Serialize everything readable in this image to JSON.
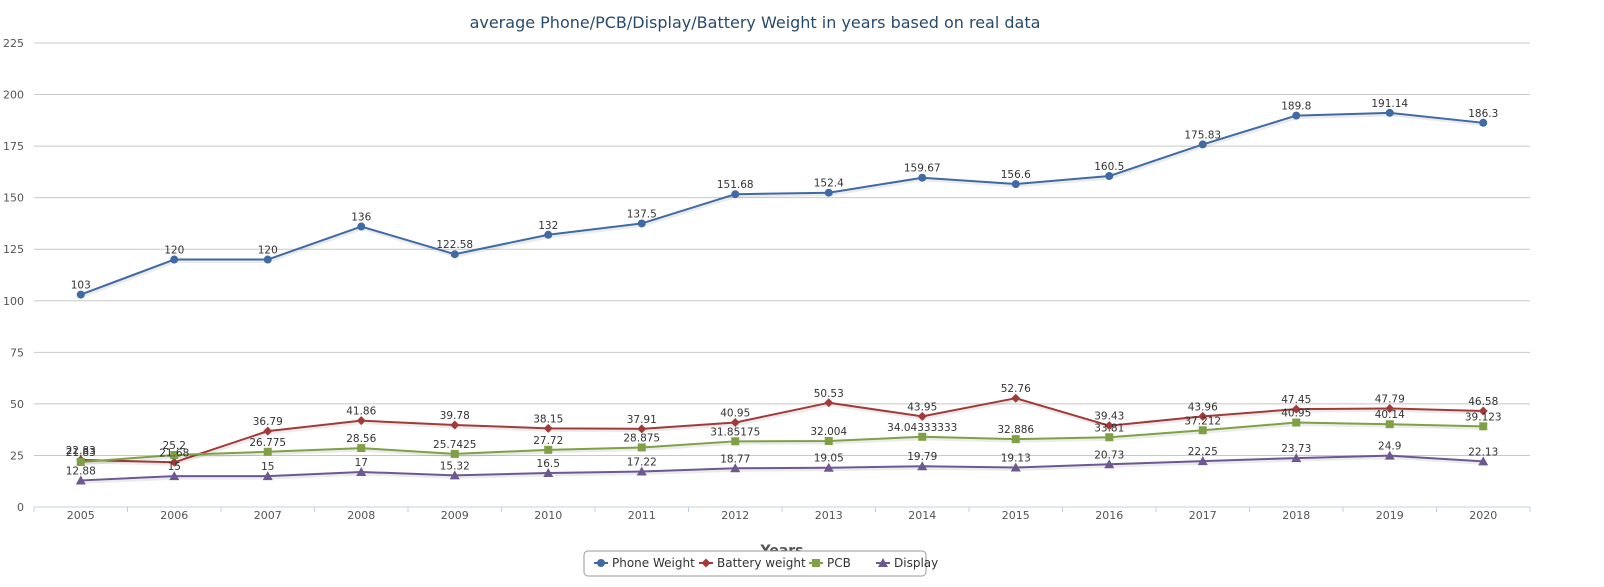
{
  "chart_data": {
    "type": "line",
    "title": "average Phone/PCB/Display/Battery Weight in years based on real data",
    "xlabel": "Years",
    "ylabel": "",
    "ylim": [
      0,
      225
    ],
    "yticks": [
      0,
      25,
      50,
      75,
      100,
      125,
      150,
      175,
      200,
      225
    ],
    "grid": true,
    "legend_position": "bottom-center",
    "categories": [
      "2005",
      "2006",
      "2007",
      "2008",
      "2009",
      "2010",
      "2011",
      "2012",
      "2013",
      "2014",
      "2015",
      "2016",
      "2017",
      "2018",
      "2019",
      "2020"
    ],
    "series": [
      {
        "name": "Phone Weight",
        "color": "#3f6aa4",
        "marker": "circle",
        "values": [
          103,
          120,
          120,
          136,
          122.58,
          132,
          137.5,
          151.68,
          152.4,
          159.67,
          156.6,
          160.5,
          175.83,
          189.8,
          191.14,
          186.3
        ],
        "labels": [
          "103",
          "120",
          "120",
          "136",
          "122.58",
          "132",
          "137.5",
          "151.68",
          "152.4",
          "159.67",
          "156.6",
          "160.5",
          "175.83",
          "189.8",
          "191.14",
          "186.3"
        ]
      },
      {
        "name": "Battery weight",
        "color": "#a33a3a",
        "marker": "diamond",
        "values": [
          22.83,
          21.68,
          36.79,
          41.86,
          39.78,
          38.15,
          37.91,
          40.95,
          50.53,
          43.95,
          52.76,
          39.43,
          43.96,
          47.45,
          47.79,
          46.58
        ],
        "labels": [
          "22.83",
          "21.68",
          "36.79",
          "41.86",
          "39.78",
          "38.15",
          "37.91",
          "40.95",
          "50.53",
          "43.95",
          "52.76",
          "39.43",
          "43.96",
          "47.45",
          "47.79",
          "46.58"
        ]
      },
      {
        "name": "PCB",
        "color": "#7fa045",
        "marker": "square",
        "values": [
          21.83,
          25.2,
          26.775,
          28.56,
          25.7425,
          27.72,
          28.875,
          31.85175,
          32.004,
          34.04333333,
          32.886,
          33.81,
          37.212,
          40.95,
          40.14,
          39.123
        ],
        "labels": [
          "21.83",
          "25.2",
          "26.775",
          "28.56",
          "25.7425",
          "27.72",
          "28.875",
          "31.85175",
          "32.004",
          "34.04333333",
          "32.886",
          "33.81",
          "37.212",
          "40.95",
          "40.14",
          "39.123"
        ]
      },
      {
        "name": "Display",
        "color": "#6e5891",
        "marker": "triangle",
        "values": [
          12.88,
          15,
          15,
          17,
          15.32,
          16.5,
          17.22,
          18.77,
          19.05,
          19.79,
          19.13,
          20.73,
          22.25,
          23.73,
          24.9,
          22.13
        ],
        "labels": [
          "12.88",
          "15",
          "15",
          "17",
          "15.32",
          "16.5",
          "17.22",
          "18.77",
          "19.05",
          "19.79",
          "19.13",
          "20.73",
          "22.25",
          "23.73",
          "24.9",
          "22.13"
        ]
      }
    ]
  }
}
